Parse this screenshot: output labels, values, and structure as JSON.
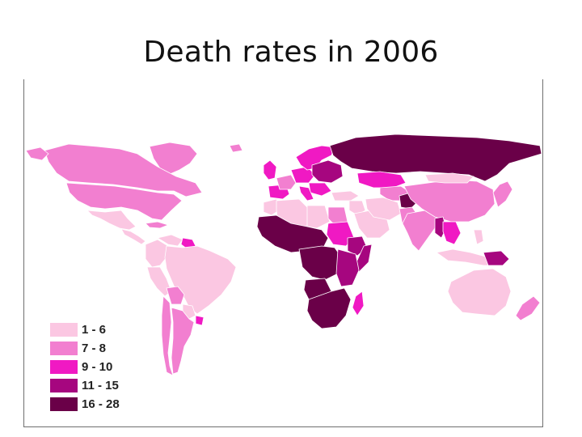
{
  "title": "Death rates in 2006",
  "colors": {
    "ocean": "#ffffff",
    "nodata": "#f7f2f6",
    "border": "#ffffff"
  },
  "legend": {
    "items": [
      {
        "label": "1 - 6",
        "color": "#fbc7e2"
      },
      {
        "label": "7 - 8",
        "color": "#f27fd0"
      },
      {
        "label": "9 - 10",
        "color": "#f019c3"
      },
      {
        "label": "11 - 15",
        "color": "#a6067f"
      },
      {
        "label": "16 - 28",
        "color": "#6a0048"
      }
    ]
  },
  "regions": [
    {
      "name": "greenland",
      "cls": 1
    },
    {
      "name": "canada",
      "cls": 1
    },
    {
      "name": "usa",
      "cls": 1
    },
    {
      "name": "alaska",
      "cls": 1
    },
    {
      "name": "mexico",
      "cls": 0
    },
    {
      "name": "central-america",
      "cls": 0
    },
    {
      "name": "caribbean",
      "cls": 1
    },
    {
      "name": "colombia-ecuador",
      "cls": 0
    },
    {
      "name": "venezuela",
      "cls": 0
    },
    {
      "name": "guyana",
      "cls": 2
    },
    {
      "name": "peru",
      "cls": 0
    },
    {
      "name": "brazil",
      "cls": 0
    },
    {
      "name": "bolivia",
      "cls": 1
    },
    {
      "name": "paraguay",
      "cls": 0
    },
    {
      "name": "chile",
      "cls": 1
    },
    {
      "name": "argentina",
      "cls": 1
    },
    {
      "name": "uruguay",
      "cls": 2
    },
    {
      "name": "iceland",
      "cls": 1
    },
    {
      "name": "uk-ireland",
      "cls": 2
    },
    {
      "name": "iberia",
      "cls": 2
    },
    {
      "name": "france",
      "cls": 1
    },
    {
      "name": "germany-central",
      "cls": 2
    },
    {
      "name": "scandinavia",
      "cls": 2
    },
    {
      "name": "eastern-europe",
      "cls": 3
    },
    {
      "name": "balkans",
      "cls": 2
    },
    {
      "name": "italy",
      "cls": 2
    },
    {
      "name": "russia",
      "cls": 4
    },
    {
      "name": "kazakhstan",
      "cls": 2
    },
    {
      "name": "central-asia",
      "cls": 1
    },
    {
      "name": "afghanistan",
      "cls": 4
    },
    {
      "name": "turkey",
      "cls": 0
    },
    {
      "name": "middle-east",
      "cls": 0
    },
    {
      "name": "arabia",
      "cls": 0
    },
    {
      "name": "iran",
      "cls": 0
    },
    {
      "name": "pakistan",
      "cls": 1
    },
    {
      "name": "india",
      "cls": 1
    },
    {
      "name": "china",
      "cls": 1
    },
    {
      "name": "mongolia",
      "cls": 0
    },
    {
      "name": "korea-japan",
      "cls": 1
    },
    {
      "name": "myanmar",
      "cls": 3
    },
    {
      "name": "se-asia",
      "cls": 2
    },
    {
      "name": "indonesia",
      "cls": 0
    },
    {
      "name": "philippines",
      "cls": 0
    },
    {
      "name": "png",
      "cls": 3
    },
    {
      "name": "australia",
      "cls": 0
    },
    {
      "name": "new-zealand",
      "cls": 1
    },
    {
      "name": "morocco",
      "cls": 0
    },
    {
      "name": "algeria",
      "cls": 0
    },
    {
      "name": "libya",
      "cls": 0
    },
    {
      "name": "egypt",
      "cls": 1
    },
    {
      "name": "sudan",
      "cls": 2
    },
    {
      "name": "ethiopia",
      "cls": 3
    },
    {
      "name": "somalia",
      "cls": 3
    },
    {
      "name": "west-africa",
      "cls": 4
    },
    {
      "name": "central-africa",
      "cls": 4
    },
    {
      "name": "east-africa",
      "cls": 3
    },
    {
      "name": "angola",
      "cls": 4
    },
    {
      "name": "southern-africa",
      "cls": 4
    },
    {
      "name": "madagascar",
      "cls": 2
    }
  ]
}
